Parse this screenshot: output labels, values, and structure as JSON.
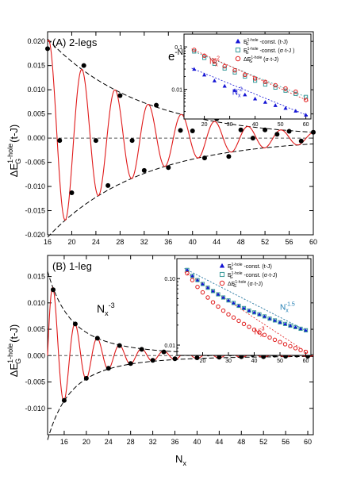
{
  "chart_data": [
    {
      "type": "line",
      "panel_label": "(A) 2-legs",
      "xlabel": "",
      "ylabel_main": "ΔE",
      "ylabel_sup": "1-hole",
      "ylabel_sub": "G",
      "ylabel_tail": "(t-J)",
      "xlim": [
        16,
        60
      ],
      "ylim": [
        -0.02,
        0.022
      ],
      "x_ticks": [
        16,
        20,
        24,
        28,
        32,
        36,
        40,
        44,
        48,
        52,
        56,
        60
      ],
      "y_ticks": [
        -0.02,
        -0.015,
        -0.01,
        -0.005,
        0.0,
        0.005,
        0.01,
        0.015,
        0.02
      ],
      "y_tick_labels": [
        "-0.020",
        "-0.015",
        "-0.010",
        "-0.005",
        "0.000",
        "0.005",
        "0.010",
        "0.015",
        "0.020"
      ],
      "envelope_label": {
        "base": "e",
        "exp": "-N",
        "exp_sub": "x",
        "exp_tail": "/ξ"
      },
      "envelope": {
        "amplitude_at_16": 0.0205,
        "amplitude_at_60": 0.0012
      },
      "oscillation_period": 5.5,
      "series": [
        {
          "style": "points",
          "x": [
            16,
            18,
            20,
            22,
            24,
            26,
            28,
            30,
            32,
            34,
            36,
            38,
            40,
            42,
            44,
            46,
            48,
            50,
            52,
            54,
            56,
            58,
            60
          ],
          "y": [
            0.0185,
            -0.0005,
            -0.0113,
            0.015,
            -0.0005,
            -0.0098,
            0.0088,
            -0.0005,
            -0.0067,
            0.0068,
            -0.0061,
            0.0016,
            0.0015,
            -0.0041,
            0.004,
            -0.0038,
            0.0017,
            0.0,
            0.0017,
            0.0008,
            0.0014,
            -0.0006,
            0.0012
          ]
        }
      ],
      "inset": {
        "xlim": [
          12,
          62
        ],
        "ylim": [
          0.002,
          0.2
        ],
        "log_y": true,
        "x_ticks": [
          20,
          30,
          40,
          50,
          60
        ],
        "y_ticks": [
          0.01,
          0.1
        ],
        "y_tick_labels": [
          "0.01",
          "0.1"
        ],
        "legend": [
          {
            "marker": "triangle",
            "color": "#1414d4",
            "text": "E",
            "sup": "1-hole",
            "sub": "G",
            "tail": "-const. (t-J)"
          },
          {
            "marker": "square",
            "color": "#3a9a9a",
            "text": "E",
            "sup": "1-hole",
            "sub": "G",
            "tail": "-const. (σ·t-J )"
          },
          {
            "marker": "circle",
            "color": "#e01a1a",
            "text": "ΔE",
            "sup": "1-hole",
            "sub": "G",
            "tail": "(σ·t-J)"
          }
        ],
        "annotations": [
          {
            "base": "N",
            "sub": "x",
            "sup": "-2",
            "color": "#e01a1a",
            "at": [
              22,
              0.04
            ]
          },
          {
            "base": "N",
            "sub": "x",
            "sup": "-2",
            "color": "#1414d4",
            "at": [
              31,
              0.0075
            ]
          }
        ],
        "series": [
          {
            "marker": "triangle",
            "color": "#1414d4",
            "x": [
              16,
              20,
              24,
              28,
              32,
              36,
              40,
              44,
              48,
              52,
              56,
              60
            ],
            "y": [
              0.03,
              0.022,
              0.016,
              0.012,
              0.0095,
              0.0075,
              0.006,
              0.005,
              0.0042,
              0.0036,
              0.0031,
              0.0025
            ]
          },
          {
            "marker": "square",
            "color": "#3a9a9a",
            "x": [
              16,
              20,
              24,
              28,
              32,
              36,
              40,
              44,
              48,
              52,
              56,
              60
            ],
            "y": [
              0.078,
              0.055,
              0.04,
              0.031,
              0.025,
              0.02,
              0.016,
              0.013,
              0.011,
              0.0093,
              0.0078,
              0.0066
            ]
          },
          {
            "marker": "circle",
            "color": "#e01a1a",
            "x": [
              16,
              20,
              24,
              28,
              32,
              36,
              40,
              44,
              48,
              52,
              56,
              60
            ],
            "y": [
              0.085,
              0.062,
              0.046,
              0.035,
              0.028,
              0.022,
              0.018,
              0.015,
              0.0125,
              0.0105,
              0.0088,
              0.0056
            ]
          }
        ]
      }
    },
    {
      "type": "line",
      "panel_label": "(B) 1-leg",
      "xlabel_base": "N",
      "xlabel_sub": "x",
      "ylabel_main": "ΔE",
      "ylabel_sup": "1-hole",
      "ylabel_sub": "G",
      "ylabel_tail": "(t-J)",
      "xlim": [
        13,
        61
      ],
      "ylim": [
        -0.015,
        0.019
      ],
      "x_ticks": [
        16,
        20,
        24,
        28,
        32,
        36,
        40,
        44,
        48,
        52,
        56,
        60
      ],
      "y_ticks": [
        -0.01,
        -0.005,
        0.0,
        0.005,
        0.01,
        0.015
      ],
      "y_tick_labels": [
        "-0.010",
        "-0.005",
        "0.000",
        "0.005",
        "0.010",
        "0.015"
      ],
      "envelope_label": {
        "base": "N",
        "sub": "x",
        "sup": "-3"
      },
      "envelope": {
        "amplitude_at_14": 0.0128,
        "power": 3
      },
      "series": [
        {
          "style": "points",
          "x": [
            14,
            16,
            18,
            20,
            22,
            24,
            26,
            28,
            30,
            32,
            34,
            36,
            38,
            40,
            42,
            44,
            46,
            48,
            50,
            52,
            54,
            56,
            58,
            60
          ],
          "y": [
            0.0125,
            -0.0085,
            0.006,
            -0.0043,
            0.0033,
            -0.0024,
            0.0019,
            -0.0015,
            0.0012,
            -0.0009,
            0.0007,
            -0.0006,
            0.0005,
            -0.0004,
            0.0003,
            -0.0003,
            0.0003,
            -0.0002,
            0.0002,
            -0.0002,
            0.0001,
            -0.0001,
            0.0001,
            -0.0001
          ]
        }
      ],
      "inset": {
        "xlim": [
          10,
          62
        ],
        "ylim": [
          0.007,
          0.2
        ],
        "log_y": true,
        "x_ticks": [
          20,
          30,
          40,
          50,
          60
        ],
        "y_ticks": [
          0.01,
          0.1
        ],
        "y_tick_labels": [
          "0.01",
          "0.10"
        ],
        "legend": [
          {
            "marker": "triangle",
            "color": "#1414d4",
            "text": "E",
            "sup": "1-hole",
            "sub": "G",
            "tail": "-const.  (t-J)"
          },
          {
            "marker": "square",
            "color": "#3a9a9a",
            "text": "E",
            "sup": "1-hole",
            "sub": "G",
            "tail": "-const.  (σ·t-J)"
          },
          {
            "marker": "circle",
            "color": "#e01a1a",
            "text": "ΔE",
            "sup": "1-hole",
            "sub": "G",
            "tail": "(σ·t-J)"
          }
        ],
        "annotations": [
          {
            "base": "N",
            "sub": "x",
            "sup": "-1.5",
            "color": "#1a7ab0",
            "at": [
              50,
              0.034
            ]
          },
          {
            "base": "N",
            "sub": "x",
            "sup": "-3",
            "color": "#e01a1a",
            "at": [
              40,
              0.0145
            ]
          }
        ],
        "series": [
          {
            "marker": "triangle",
            "color": "#1414d4",
            "x": [
              14,
              16,
              18,
              20,
              22,
              24,
              26,
              28,
              30,
              32,
              34,
              36,
              38,
              40,
              42,
              44,
              46,
              48,
              50,
              52,
              54,
              56,
              58,
              60
            ],
            "y": [
              0.135,
              0.11,
              0.095,
              0.083,
              0.073,
              0.065,
              0.058,
              0.052,
              0.047,
              0.043,
              0.039,
              0.036,
              0.033,
              0.031,
              0.029,
              0.027,
              0.025,
              0.0235,
              0.022,
              0.0208,
              0.0196,
              0.0186,
              0.0176,
              0.0167
            ]
          },
          {
            "marker": "square",
            "color": "#3a9a9a",
            "x": [
              14,
              16,
              18,
              20,
              22,
              24,
              26,
              28,
              30,
              32,
              34,
              36,
              38,
              40,
              42,
              44,
              46,
              48,
              50,
              52,
              54,
              56,
              58,
              60
            ],
            "y": [
              0.135,
              0.11,
              0.095,
              0.083,
              0.073,
              0.065,
              0.058,
              0.052,
              0.047,
              0.043,
              0.039,
              0.036,
              0.033,
              0.031,
              0.029,
              0.027,
              0.025,
              0.0235,
              0.022,
              0.0208,
              0.0196,
              0.0186,
              0.0176,
              0.0167
            ]
          },
          {
            "marker": "circle",
            "color": "#e01a1a",
            "x": [
              14,
              16,
              18,
              20,
              22,
              24,
              26,
              28,
              30,
              32,
              34,
              36,
              38,
              40,
              42,
              44,
              46,
              48,
              50,
              52,
              54,
              56,
              58,
              60
            ],
            "y": [
              0.12,
              0.095,
              0.075,
              0.062,
              0.052,
              0.044,
              0.038,
              0.033,
              0.029,
              0.026,
              0.0232,
              0.0208,
              0.0188,
              0.017,
              0.0155,
              0.0142,
              0.013,
              0.012,
              0.0111,
              0.0103,
              0.0096,
              0.009,
              0.0084,
              0.0079
            ]
          }
        ]
      }
    }
  ]
}
